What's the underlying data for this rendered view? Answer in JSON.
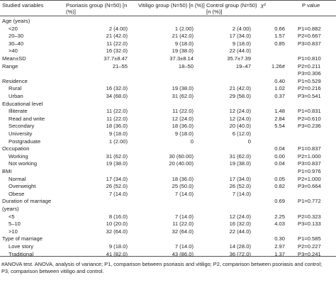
{
  "header": {
    "col0": "Studied variables",
    "col1": "Psoriasis group (N=50) [n (%)]",
    "col2": "Vitiligo group (N=50) [n (%)]",
    "col3": "Control group (N=50) [n (%)]",
    "col4": "χ²",
    "col5": "P value"
  },
  "rows": [
    {
      "label": "Age (years)",
      "indent": 0,
      "c1": "",
      "c2": "",
      "c3": "",
      "c4": "",
      "c5": ""
    },
    {
      "label": "<20",
      "indent": 1,
      "c1": "2 (4.00)",
      "c2": "1 (2.00)",
      "c3": "2 (4.00)",
      "c4": "0.66",
      "c5": "P1=0.882"
    },
    {
      "label": "20–30",
      "indent": 1,
      "c1": "21 (42.0)",
      "c2": "21 (42.0)",
      "c3": "17 (34.0)",
      "c4": "1.57",
      "c5": "P2=0.667"
    },
    {
      "label": "30–40",
      "indent": 1,
      "c1": "11 (22.0)",
      "c2": "9 (18.0)",
      "c3": "9 (18.0)",
      "c4": "0.85",
      "c5": "P3=0.837"
    },
    {
      "label": ">40",
      "indent": 1,
      "c1": "16 (32.0)",
      "c2": "19 (38.0)",
      "c3": "22 (44.0)",
      "c4": "",
      "c5": ""
    },
    {
      "label": "Mean±SD",
      "indent": 0,
      "c1": "37.7±8.47",
      "c2": "37.3±8.14",
      "c3": "35.7±7.39",
      "c4": "",
      "c5": "P1=0.810"
    },
    {
      "label": "Range",
      "indent": 0,
      "c1": "21–55",
      "c2": "18–50",
      "c3": "19–47",
      "c4": "1.26#",
      "c5": "P2=0.211"
    },
    {
      "label": "",
      "indent": 0,
      "c1": "",
      "c2": "",
      "c3": "",
      "c4": "",
      "c5": "P3=0.306"
    },
    {
      "label": "Residence",
      "indent": 0,
      "c1": "",
      "c2": "",
      "c3": "",
      "c4": "0.40",
      "c5": "P1=0.529"
    },
    {
      "label": "Rural",
      "indent": 1,
      "c1": "16 (32.0)",
      "c2": "19 (38.0)",
      "c3": "21 (42.0)",
      "c4": "1.02",
      "c5": "P2=0.216"
    },
    {
      "label": "Urban",
      "indent": 1,
      "c1": "34 (68.0)",
      "c2": "31 (62.0)",
      "c3": "29 (58.0)",
      "c4": "0.37",
      "c5": "P3=0.541"
    },
    {
      "label": "Educational level",
      "indent": 0,
      "c1": "",
      "c2": "",
      "c3": "",
      "c4": "",
      "c5": ""
    },
    {
      "label": "Illiterate",
      "indent": 1,
      "c1": "11 (22.0)",
      "c2": "11 (22.0)",
      "c3": "12 (24.0)",
      "c4": "1.48",
      "c5": "P1=0.831"
    },
    {
      "label": "Read and write",
      "indent": 1,
      "c1": "11 (22.0)",
      "c2": "12 (24.0)",
      "c3": "12 (24.0)",
      "c4": "2.84",
      "c5": "P2=0.610"
    },
    {
      "label": "Secondary",
      "indent": 1,
      "c1": "18 (36.0)",
      "c2": "18 (36.0)",
      "c3": "20 (40.0)",
      "c4": "5.54",
      "c5": "P3=0.236"
    },
    {
      "label": "University",
      "indent": 1,
      "c1": "9 (18.0)",
      "c2": "9 (18.0)",
      "c3": "6 (12.0)",
      "c4": "",
      "c5": ""
    },
    {
      "label": "Postgraduate",
      "indent": 1,
      "c1": "1 (2.00)",
      "c2": "0",
      "c3": "0",
      "c4": "",
      "c5": ""
    },
    {
      "label": "Occupation",
      "indent": 0,
      "c1": "",
      "c2": "",
      "c3": "",
      "c4": "0.04",
      "c5": "P1=0.837"
    },
    {
      "label": "Working",
      "indent": 1,
      "c1": "31 (62.0)",
      "c2": "30 (60.00)",
      "c3": "31 (62.0)",
      "c4": "0.00",
      "c5": "P2=1.000"
    },
    {
      "label": "Not working",
      "indent": 1,
      "c1": "19 (38.0)",
      "c2": "20 (40.00)",
      "c3": "19 (38.0)",
      "c4": "0.04",
      "c5": "P3=0.837"
    },
    {
      "label": "BMI",
      "indent": 0,
      "c1": "",
      "c2": "",
      "c3": "",
      "c4": "",
      "c5": "P1=0.976"
    },
    {
      "label": "Normal",
      "indent": 1,
      "c1": "17 (34.0)",
      "c2": "18 (36.0)",
      "c3": "17 (34.0)",
      "c4": "0.05",
      "c5": "P2=1.000"
    },
    {
      "label": "Overweight",
      "indent": 1,
      "c1": "26 (52.0)",
      "c2": "25 (50.0)",
      "c3": "26 (52.0)",
      "c4": "0.82",
      "c5": "P3=0.664"
    },
    {
      "label": "Obese",
      "indent": 1,
      "c1": "7 (14.0)",
      "c2": "7 (14.0)",
      "c3": "7 (14.0)",
      "c4": "",
      "c5": ""
    },
    {
      "label": "Duration of marriage",
      "indent": 0,
      "c1": "",
      "c2": "",
      "c3": "",
      "c4": "0.69",
      "c5": "P1=0.772"
    },
    {
      "label": "(years)",
      "indent": 0,
      "c1": "",
      "c2": "",
      "c3": "",
      "c4": "",
      "c5": ""
    },
    {
      "label": "<5",
      "indent": 1,
      "c1": "8 (16.0)",
      "c2": "7 (14.0)",
      "c3": "12 (24.0)",
      "c4": "2.25",
      "c5": "P2=0.323"
    },
    {
      "label": "5–10",
      "indent": 1,
      "c1": "10 (20.0)",
      "c2": "11 (22.0)",
      "c3": "16 (32.0)",
      "c4": "4.03",
      "c5": "P3=0.133"
    },
    {
      "label": ">10",
      "indent": 1,
      "c1": "32 (64.0)",
      "c2": "32 (64.0)",
      "c3": "22 (44.0)",
      "c4": "",
      "c5": ""
    },
    {
      "label": "Type of marriage",
      "indent": 0,
      "c1": "",
      "c2": "",
      "c3": "",
      "c4": "0.30",
      "c5": "P1=0.585"
    },
    {
      "label": "Love story",
      "indent": 1,
      "c1": "9 (18.0)",
      "c2": "7 (14.0)",
      "c3": "14 (28.0)",
      "c4": "2.97",
      "c5": "P2=0.227"
    },
    {
      "label": "Traditional",
      "indent": 1,
      "c1": "41 (82.0)",
      "c2": "43 (86.0)",
      "c3": "36 (72.0)",
      "c4": "1.37",
      "c5": "P3=0.241"
    }
  ],
  "footnote": {
    "line1": "#ANOVA test. ANOVA, analysis of variance; P1, comparison between psoriasis and vitiligo; P2, comparison between psoriasis and control;",
    "line2": "P3, comparison between vitiligo and control."
  }
}
